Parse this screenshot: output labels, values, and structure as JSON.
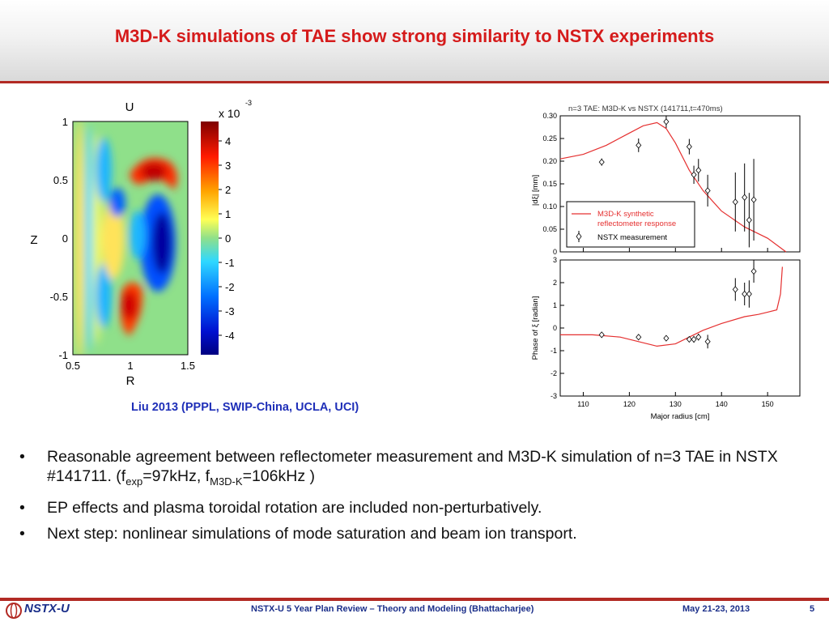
{
  "slide": {
    "title": "M3D-K simulations of TAE show strong similarity to NSTX experiments",
    "caption": "Liu 2013 (PPPL, SWIP-China, UCLA, UCI)",
    "bullets": [
      {
        "pre": "Reasonable agreement between reflectometer measurement and M3D-K simulation of n=3 TAE in NSTX #141711. (f",
        "sub1": "exp",
        "mid": "=97kHz, f",
        "sub2": "M3D-K",
        "post": "=106kHz )"
      },
      {
        "text": "EP effects and plasma toroidal rotation are included non-perturbatively."
      },
      {
        "text": "Next step: nonlinear simulations of mode saturation and beam ion transport."
      }
    ]
  },
  "footer": {
    "logo": "NSTX-U",
    "review": "NSTX-U 5 Year Plan Review – Theory and Modeling (Bhattacharjee)",
    "date": "May 21-23, 2013",
    "page": "5"
  },
  "colors": {
    "accent": "#b22a24",
    "title": "#d51b1b",
    "caption": "#1f2fb8",
    "footer_text": "#1b2f8a"
  },
  "contour": {
    "title": "U",
    "xlabel": "R",
    "ylabel": "Z",
    "x_ticks": [
      "0.5",
      "1",
      "1.5"
    ],
    "y_ticks": [
      "1",
      "0.5",
      "0",
      "-0.5",
      "-1"
    ],
    "colorbar_label": "x 10",
    "colorbar_exponent": "-3",
    "colorbar_ticks": [
      "4",
      "3",
      "2",
      "1",
      "0",
      "-1",
      "-2",
      "-3",
      "-4"
    ]
  },
  "chart_data": [
    {
      "type": "line",
      "title": "n=3 TAE: M3D-K vs NSTX (141711,t=470ms)",
      "ylabel": "|dξ| [mm]",
      "ylim": [
        0,
        0.3
      ],
      "xlim": [
        105,
        157
      ],
      "y_ticks": [
        "0.30",
        "0.25",
        "0.20",
        "0.15",
        "0.10",
        "0.05",
        "0"
      ],
      "legend": [
        "M3D-K synthetic reflectometer response",
        "NSTX measurement"
      ],
      "legend_line1": "M3D-K synthetic",
      "legend_line2": "reflectometer response",
      "legend_placement": "bottom-left",
      "series": [
        {
          "name": "M3D-K synthetic reflectometer response",
          "x": [
            105,
            110,
            115,
            120,
            123,
            126,
            128,
            130,
            133,
            136,
            140,
            145,
            150,
            154
          ],
          "y": [
            0.205,
            0.215,
            0.235,
            0.262,
            0.278,
            0.285,
            0.272,
            0.24,
            0.18,
            0.135,
            0.09,
            0.055,
            0.03,
            0.0
          ]
        },
        {
          "name": "NSTX measurement",
          "x": [
            114,
            122,
            128,
            133,
            134,
            135,
            137,
            143,
            145,
            146,
            147
          ],
          "y": [
            0.198,
            0.235,
            0.287,
            0.232,
            0.17,
            0.18,
            0.135,
            0.11,
            0.12,
            0.07,
            0.115
          ],
          "err": [
            0.008,
            0.015,
            0.014,
            0.017,
            0.02,
            0.025,
            0.035,
            0.065,
            0.075,
            0.06,
            0.09
          ]
        }
      ]
    },
    {
      "type": "line",
      "ylabel": "Phase of ξ [radian]",
      "xlabel": "Major radius [cm]",
      "ylim": [
        -3,
        3
      ],
      "xlim": [
        105,
        157
      ],
      "y_ticks": [
        "3",
        "2",
        "1",
        "0",
        "-1",
        "-2",
        "-3"
      ],
      "x_ticks": [
        "110",
        "120",
        "130",
        "140",
        "150"
      ],
      "series": [
        {
          "name": "M3D-K",
          "x": [
            105,
            112,
            118,
            122,
            126,
            130,
            133,
            136,
            140,
            145,
            148,
            150,
            152,
            152.8,
            153.2
          ],
          "y": [
            -0.3,
            -0.3,
            -0.4,
            -0.6,
            -0.8,
            -0.7,
            -0.4,
            -0.1,
            0.2,
            0.5,
            0.6,
            0.7,
            0.8,
            1.5,
            2.7
          ]
        },
        {
          "name": "NSTX",
          "x": [
            114,
            122,
            128,
            133,
            134,
            135,
            137,
            143,
            145,
            146,
            147
          ],
          "y": [
            -0.3,
            -0.4,
            -0.45,
            -0.5,
            -0.5,
            -0.4,
            -0.6,
            1.7,
            1.5,
            1.5,
            2.5
          ],
          "err": [
            0.1,
            0.1,
            0.1,
            0.1,
            0.15,
            0.15,
            0.3,
            0.5,
            0.5,
            0.6,
            0.5
          ]
        }
      ]
    }
  ]
}
